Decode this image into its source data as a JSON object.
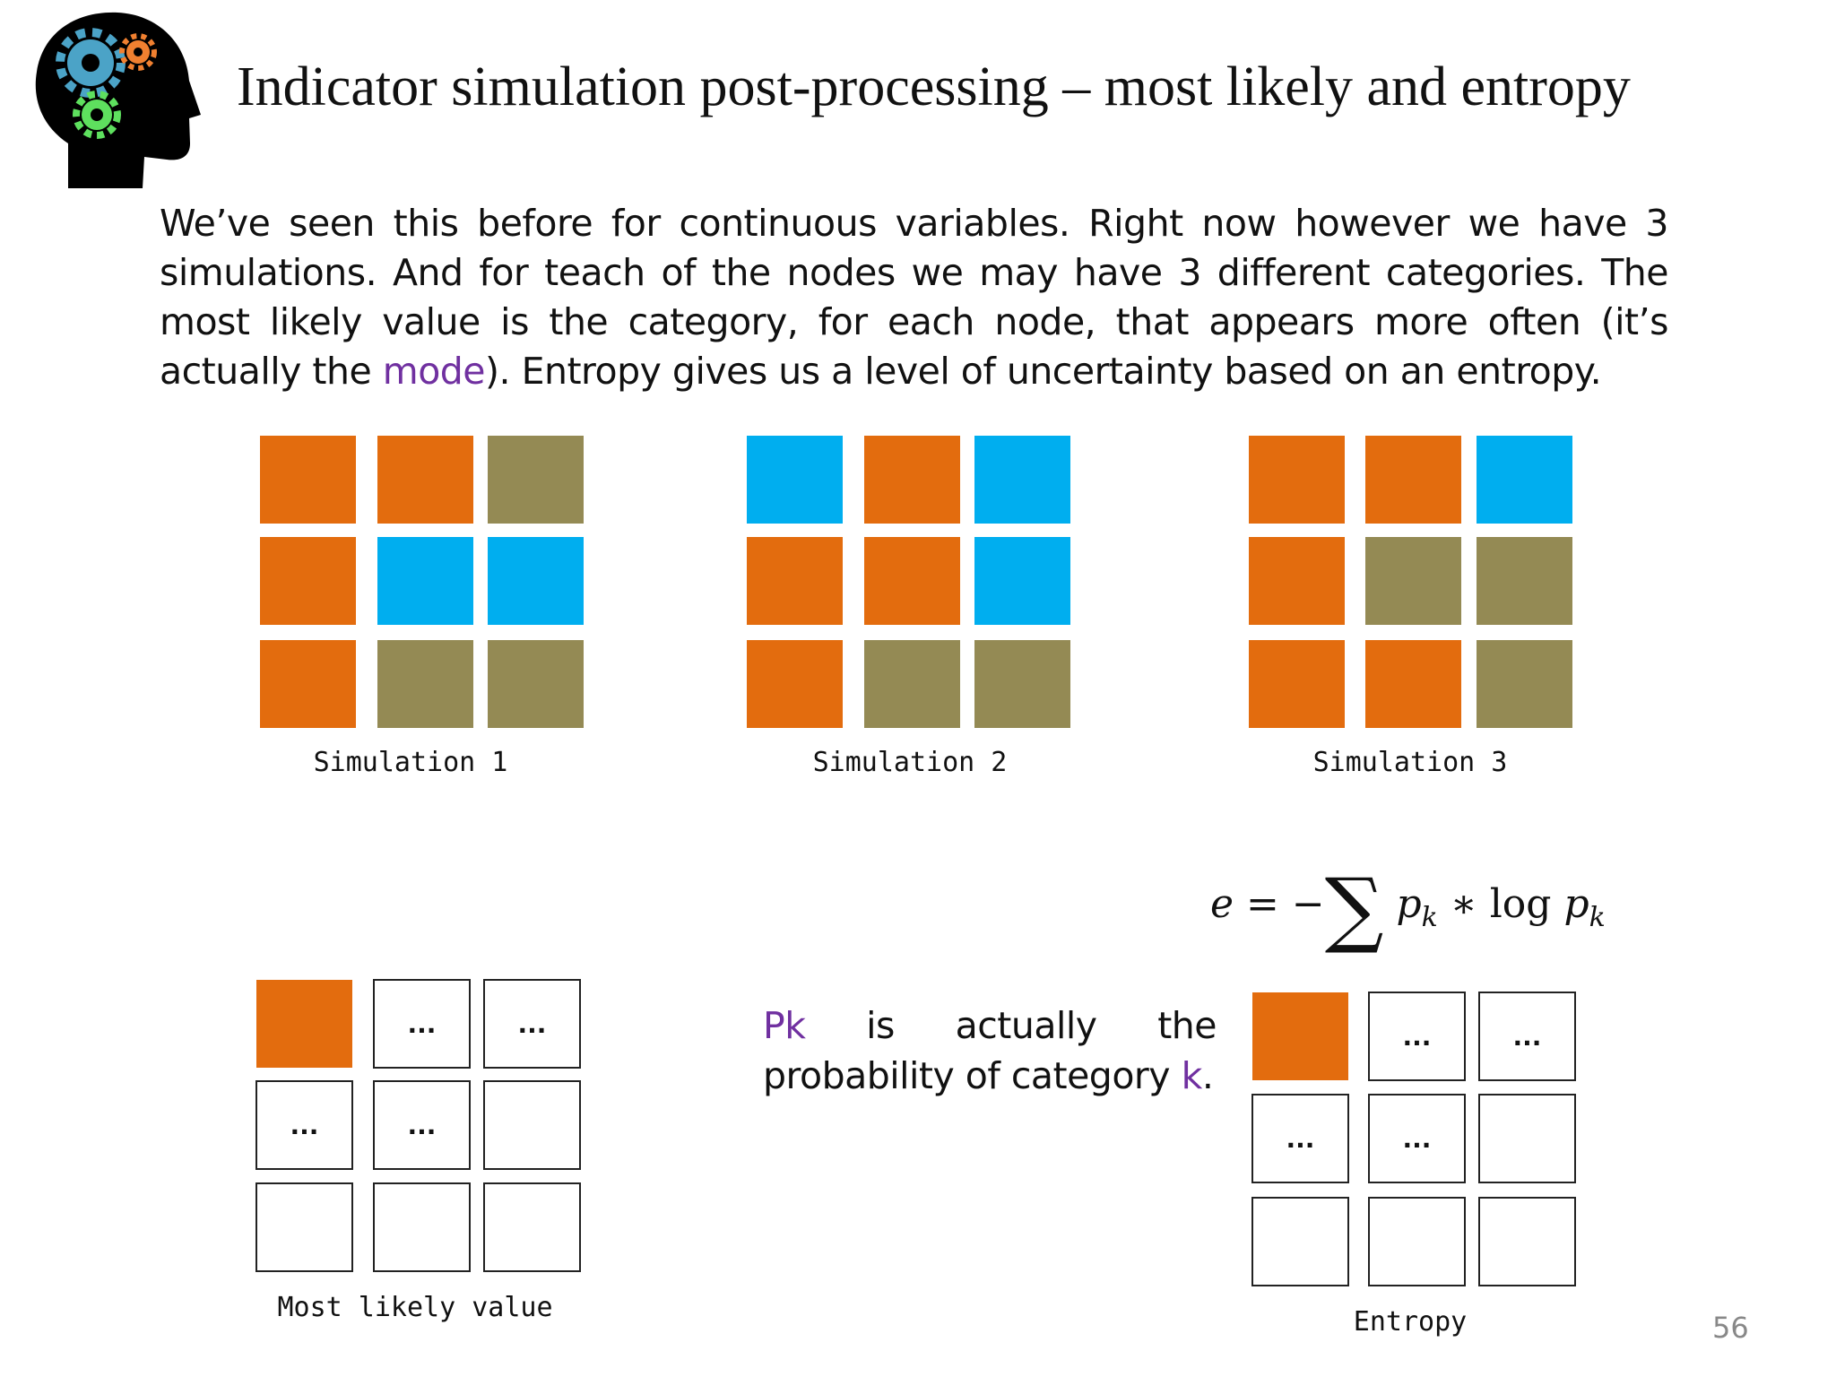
{
  "header": {
    "title": "Indicator simulation post-processing – most likely and entropy"
  },
  "paragraph": {
    "before": "We’ve seen this before for continuous variables. Right now however we have 3 simulations. And for teach of the nodes we may have 3 different categories. The most likely value is the category, for each node, that appears more often  (it’s actually the ",
    "link": "mode",
    "after": "). Entropy gives us a level of uncertainty based on an entropy."
  },
  "simulations": [
    {
      "label": "Simulation 1",
      "cells": [
        [
          "#E36C0E",
          "#E36C0E",
          "#948A54"
        ],
        [
          "#E36C0E",
          "#00AEEF",
          "#00AEEF"
        ],
        [
          "#E36C0E",
          "#948A54",
          "#948A54"
        ]
      ]
    },
    {
      "label": "Simulation 2",
      "cells": [
        [
          "#00AEEF",
          "#E36C0E",
          "#00AEEF"
        ],
        [
          "#E36C0E",
          "#E36C0E",
          "#00AEEF"
        ],
        [
          "#E36C0E",
          "#948A54",
          "#948A54"
        ]
      ]
    },
    {
      "label": "Simulation 3",
      "cells": [
        [
          "#E36C0E",
          "#E36C0E",
          "#00AEEF"
        ],
        [
          "#E36C0E",
          "#948A54",
          "#948A54"
        ],
        [
          "#E36C0E",
          "#E36C0E",
          "#948A54"
        ]
      ]
    }
  ],
  "results": [
    {
      "label": "Most likely value",
      "cells": [
        [
          {
            "color": "#E36C0E"
          },
          {
            "text": "..."
          },
          {
            "text": "..."
          }
        ],
        [
          {
            "text": "..."
          },
          {
            "text": "..."
          },
          null
        ],
        [
          null,
          null,
          null
        ]
      ]
    },
    {
      "label": "Entropy",
      "cells": [
        [
          {
            "color": "#E36C0E"
          },
          {
            "text": "..."
          },
          {
            "text": "..."
          }
        ],
        [
          {
            "text": "..."
          },
          {
            "text": "..."
          },
          null
        ],
        [
          null,
          null,
          null
        ]
      ]
    }
  ],
  "formula": {
    "lhs": "e",
    "eq": "= −",
    "sum": "∑",
    "p1": "p",
    "k1": "k",
    "op": "∗ log",
    "p2": "p",
    "k2": "k"
  },
  "note": {
    "pk": "Pk",
    "middle": " is actually the probability of category ",
    "k": "k",
    "end": "."
  },
  "page_number": "56"
}
